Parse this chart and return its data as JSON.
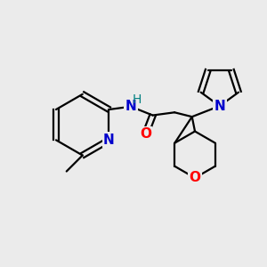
{
  "bg_color": "#ebebeb",
  "atom_colors": {
    "N": "#0000cc",
    "O": "#ff0000",
    "H": "#008080",
    "C": "#000000"
  },
  "bond_color": "#000000",
  "bond_lw": 1.6,
  "font_size": 11
}
